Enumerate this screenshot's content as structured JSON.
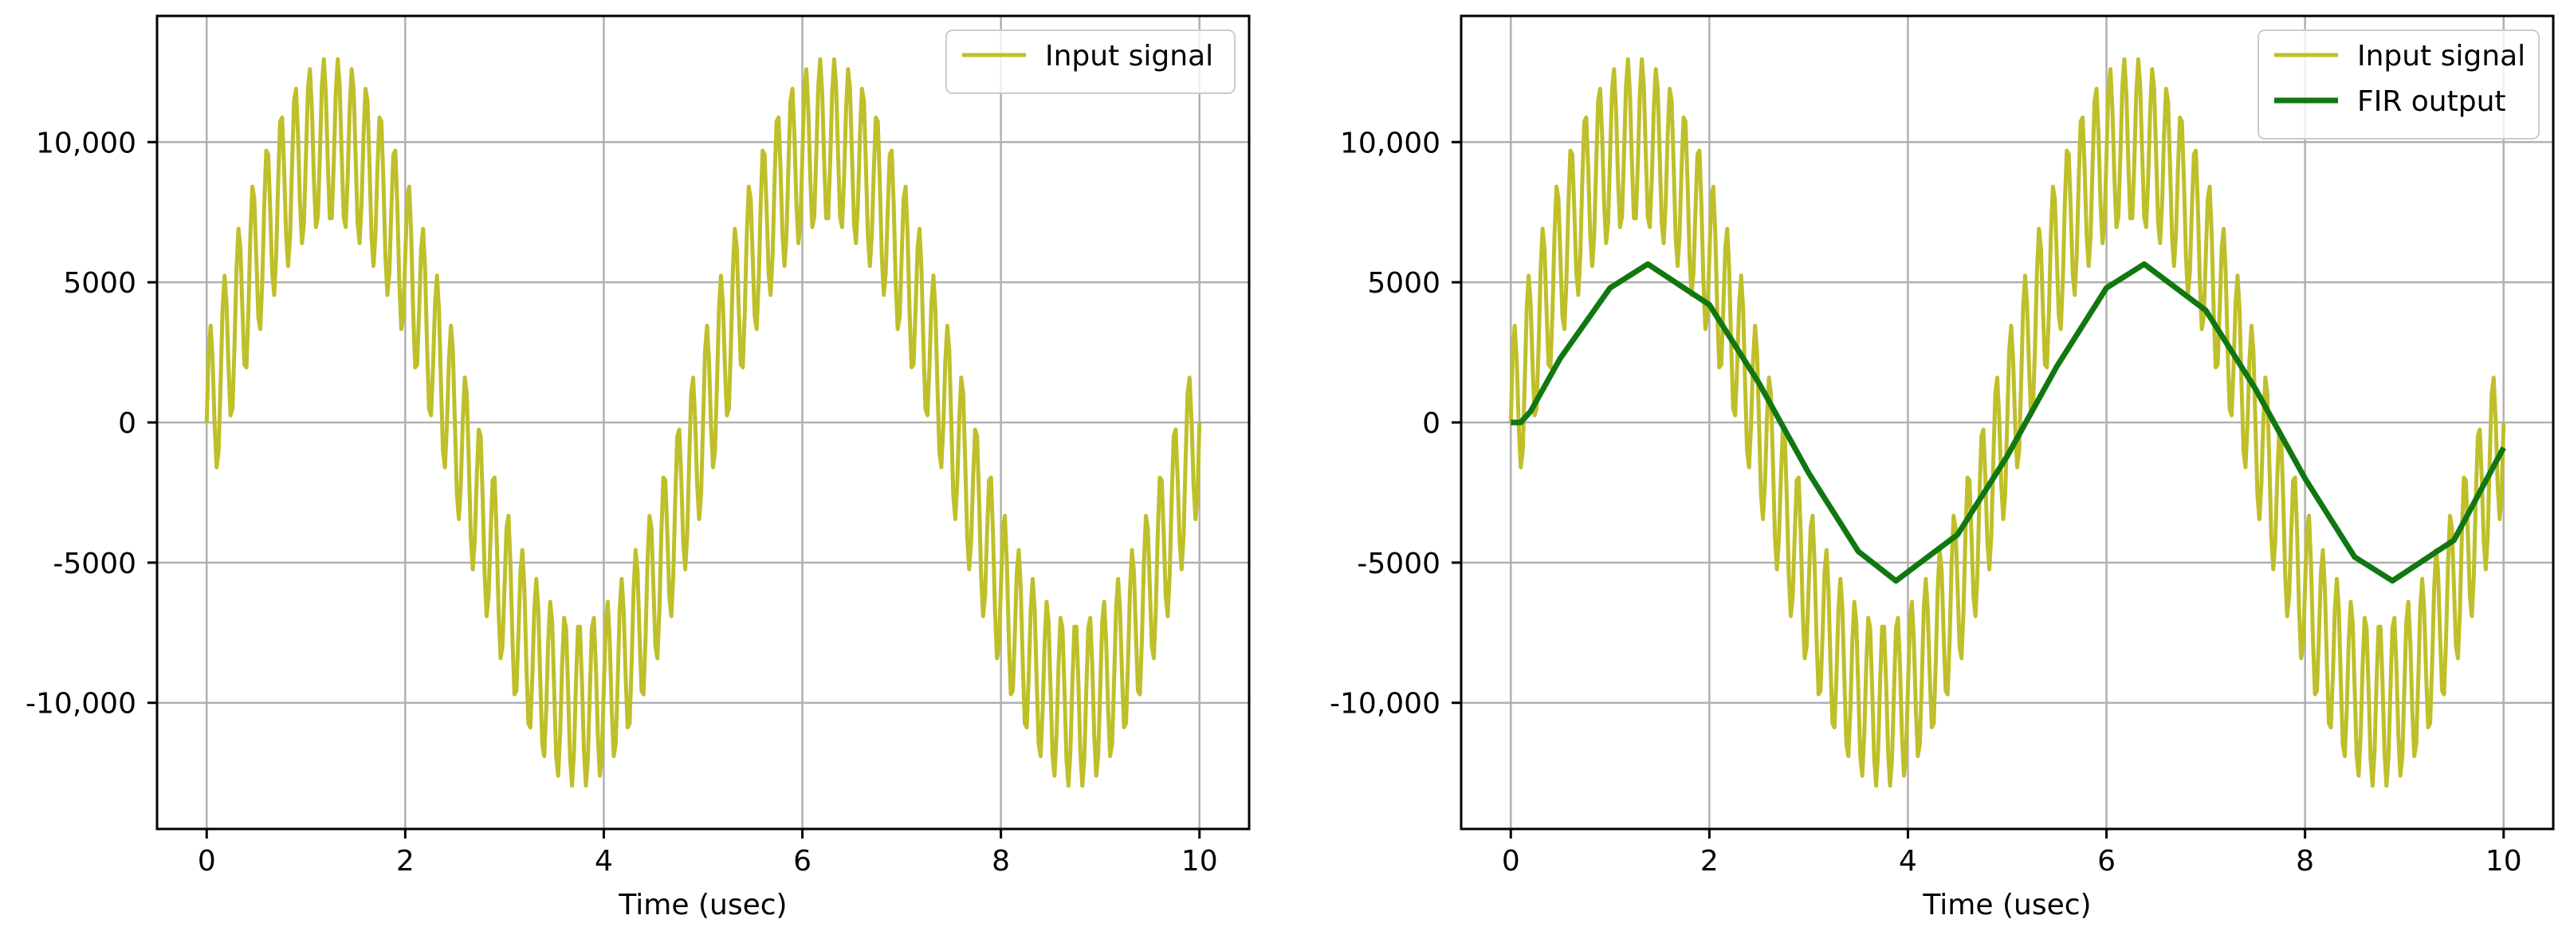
{
  "chart_data": [
    {
      "type": "line",
      "title": "",
      "xlabel": "Time (usec)",
      "ylabel": "",
      "xlim": [
        -0.5,
        10.5
      ],
      "ylim": [
        -14500,
        14500
      ],
      "x_ticks": [
        0,
        2,
        4,
        6,
        8,
        10
      ],
      "x_tick_labels": [
        "0",
        "2",
        "4",
        "6",
        "8",
        "10"
      ],
      "y_ticks": [
        -10000,
        -5000,
        0,
        5000,
        10000
      ],
      "y_tick_labels": [
        "-10,000",
        "-5000",
        "0",
        "5000",
        "10,000"
      ],
      "grid": true,
      "legend_position": "top-right",
      "series": [
        {
          "name": "Input signal",
          "color": "#bfbf2a",
          "description_values": "sum of two sinusoids sampled 0–10 usec at 0.02 usec steps",
          "components": [
            {
              "amplitude": 10000,
              "frequency_mhz": 0.2
            },
            {
              "amplitude": 3000,
              "frequency_mhz": 7.0
            }
          ],
          "x_range": [
            0,
            10
          ],
          "x_step": 0.02
        }
      ]
    },
    {
      "type": "line",
      "title": "",
      "xlabel": "Time (usec)",
      "ylabel": "",
      "xlim": [
        -0.5,
        10.5
      ],
      "ylim": [
        -14500,
        14500
      ],
      "x_ticks": [
        0,
        2,
        4,
        6,
        8,
        10
      ],
      "x_tick_labels": [
        "0",
        "2",
        "4",
        "6",
        "8",
        "10"
      ],
      "y_ticks": [
        -10000,
        -5000,
        0,
        5000,
        10000
      ],
      "y_tick_labels": [
        "-10,000",
        "-5000",
        "0",
        "5000",
        "10,000"
      ],
      "grid": true,
      "legend_position": "top-right",
      "series": [
        {
          "name": "Input signal",
          "color": "#bfbf2a",
          "components": [
            {
              "amplitude": 10000,
              "frequency_mhz": 0.2
            },
            {
              "amplitude": 3000,
              "frequency_mhz": 7.0
            }
          ],
          "x_range": [
            0,
            10
          ],
          "x_step": 0.02
        },
        {
          "name": "FIR output",
          "color": "#117711",
          "x": [
            0,
            0.1,
            0.2,
            0.5,
            1.0,
            1.38,
            2.0,
            2.5,
            3.0,
            3.5,
            3.88,
            4.5,
            5.0,
            5.5,
            6.0,
            6.38,
            7.0,
            7.5,
            8.0,
            8.5,
            8.88,
            9.5,
            10.0
          ],
          "y": [
            0,
            0,
            400,
            2300,
            4800,
            5650,
            4200,
            1400,
            -1800,
            -4600,
            -5650,
            -4000,
            -1200,
            2000,
            4800,
            5650,
            4000,
            1200,
            -2000,
            -4800,
            -5650,
            -4200,
            -900
          ]
        }
      ]
    }
  ]
}
